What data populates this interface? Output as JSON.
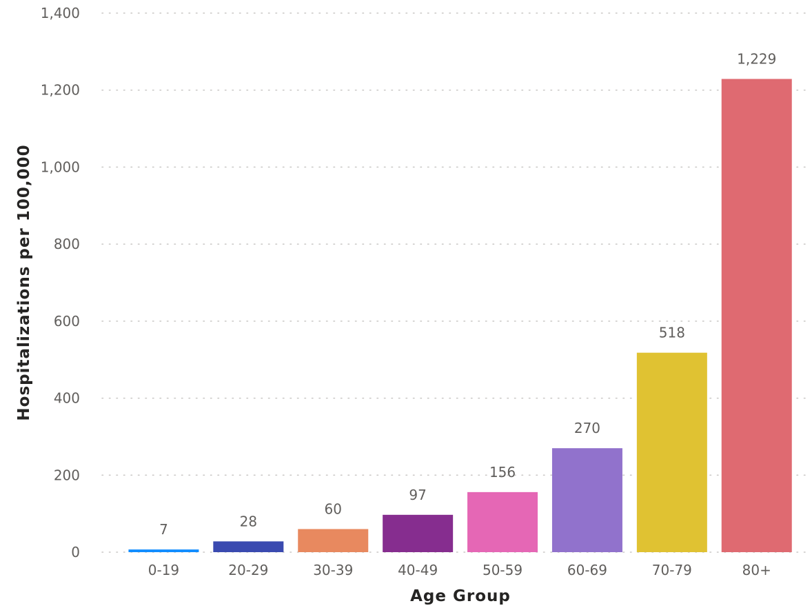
{
  "chart_data": {
    "type": "bar",
    "title": "",
    "xlabel": "Age Group",
    "ylabel": "Hospitalizations per 100,000",
    "categories": [
      "0-19",
      "20-29",
      "30-39",
      "40-49",
      "50-59",
      "60-69",
      "70-79",
      "80+"
    ],
    "values": [
      7,
      28,
      60,
      97,
      156,
      270,
      518,
      1229
    ],
    "data_labels": [
      "7",
      "28",
      "60",
      "97",
      "156",
      "270",
      "518",
      "1,229"
    ],
    "colors": [
      "#118DFF",
      "#3A4AB0",
      "#E8895F",
      "#862D8F",
      "#E567B5",
      "#9172CC",
      "#E0C232",
      "#DF6A71"
    ],
    "ylim": [
      0,
      1400
    ],
    "yticks": [
      0,
      200,
      400,
      600,
      800,
      1000,
      1200,
      1400
    ],
    "ytick_labels": [
      "0",
      "200",
      "400",
      "600",
      "800",
      "1,000",
      "1,200",
      "1,400"
    ],
    "grid": "horizontal-dotted",
    "legend": "none"
  }
}
